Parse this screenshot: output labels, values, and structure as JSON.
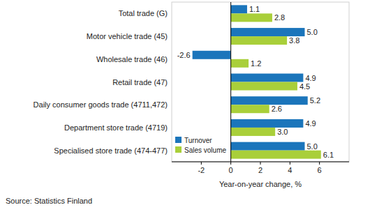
{
  "chart_data": {
    "type": "bar",
    "orientation": "horizontal",
    "categories": [
      "Total trade (G)",
      "Motor vehicle trade (45)",
      "Wholesale trade (46)",
      "Retail trade (47)",
      "Daily consumer goods trade (4711,472)",
      "Department store trade (4719)",
      "Specialised store trade (474-477)"
    ],
    "series": [
      {
        "name": "Turnover",
        "color": "#1b75bb",
        "values": [
          1.1,
          5.0,
          -2.6,
          4.9,
          5.2,
          4.9,
          5.0
        ],
        "value_labels": [
          "1.1",
          "5.0",
          "-2.6",
          "4.9",
          "5.2",
          "4.9",
          "5.0"
        ]
      },
      {
        "name": "Sales volume",
        "color": "#a9cf3a",
        "values": [
          2.8,
          3.8,
          1.2,
          4.5,
          2.6,
          3.0,
          6.1
        ],
        "value_labels": [
          "2.8",
          "3.8",
          "1.2",
          "4.5",
          "2.6",
          "3.0",
          "6.1"
        ]
      }
    ],
    "xlabel": "Year-on-year change, %",
    "xlim": [
      -4,
      8
    ],
    "xticks": [
      -2,
      0,
      2,
      4,
      6
    ],
    "data_labels": true,
    "legend": "lower left",
    "grid": false,
    "annotations": [
      "Source: Statistics Finland"
    ]
  }
}
